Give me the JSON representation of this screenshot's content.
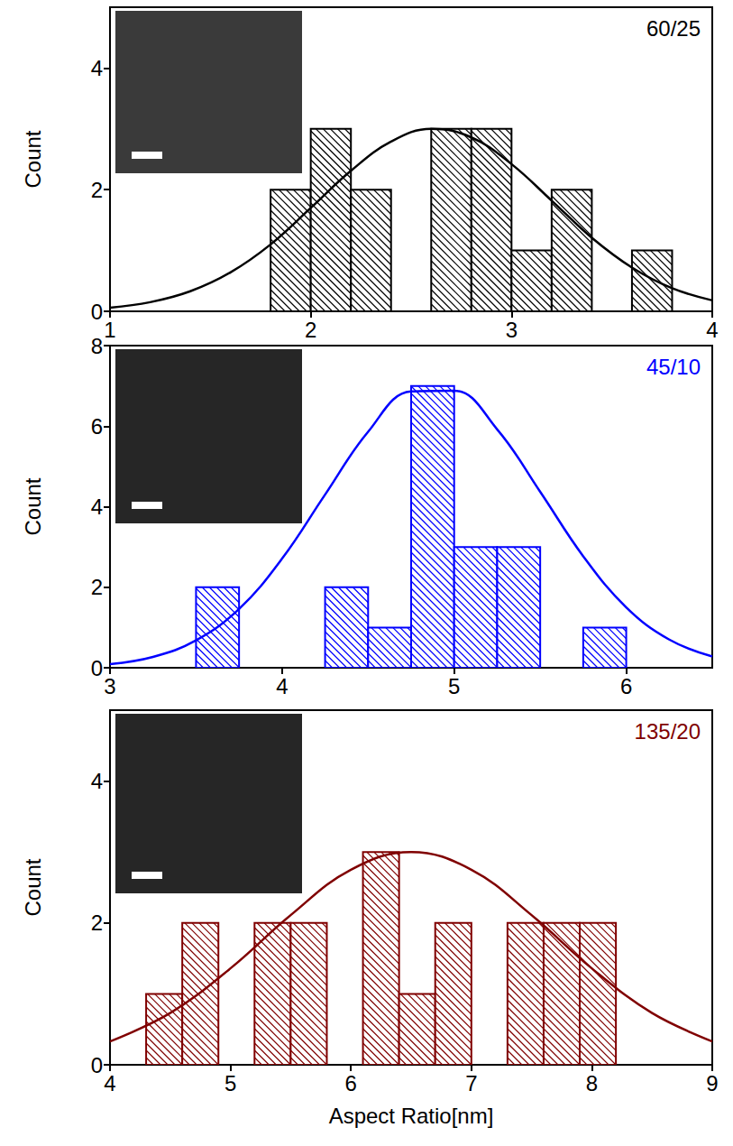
{
  "chart_data": [
    {
      "type": "histogram",
      "title": "60/25",
      "color": "#000000",
      "y_label": "Count",
      "bins": [
        1.8,
        2.0,
        2.2,
        2.4,
        2.6,
        2.8,
        3.0,
        3.2,
        3.4,
        3.6,
        3.8
      ],
      "counts": [
        2,
        3,
        2,
        0,
        3,
        3,
        1,
        2,
        0,
        1
      ],
      "fit": {
        "type": "line",
        "x": [
          1.0,
          1.2,
          1.4,
          1.6,
          1.8,
          2.0,
          2.2,
          2.4,
          2.6,
          2.8,
          3.0,
          3.2,
          3.4,
          3.6,
          3.8,
          4.0
        ],
        "values": [
          0.06,
          0.15,
          0.33,
          0.64,
          1.1,
          1.7,
          2.31,
          2.79,
          3.0,
          2.86,
          2.42,
          1.82,
          1.21,
          0.72,
          0.38,
          0.18
        ]
      },
      "xlim": [
        1,
        4
      ],
      "xticks": [
        1,
        2,
        3,
        4
      ],
      "ylim": [
        0,
        5
      ],
      "yticks": [
        0,
        2,
        4
      ],
      "grid": false
    },
    {
      "type": "histogram",
      "title": "45/10",
      "color": "#0000ff",
      "y_label": "Count",
      "bins": [
        3.5,
        3.75,
        4.0,
        4.25,
        4.5,
        4.75,
        5.0,
        5.25,
        5.5,
        5.75,
        6.0
      ],
      "counts": [
        2,
        0,
        0,
        2,
        1,
        7,
        3,
        3,
        0,
        1
      ],
      "fit": {
        "type": "line",
        "x": [
          3.0,
          3.25,
          3.5,
          3.75,
          4.0,
          4.25,
          4.5,
          4.75,
          5.0,
          5.25,
          5.5,
          5.75,
          6.0,
          6.25,
          6.5
        ],
        "values": [
          0.09,
          0.27,
          0.68,
          1.46,
          2.71,
          4.3,
          5.86,
          6.86,
          6.88,
          5.92,
          4.37,
          2.77,
          1.5,
          0.7,
          0.28
        ]
      },
      "xlim": [
        3,
        6.5
      ],
      "xticks": [
        3,
        4,
        5,
        6
      ],
      "ylim": [
        0,
        8
      ],
      "yticks": [
        0,
        2,
        4,
        6,
        8
      ],
      "grid": false
    },
    {
      "type": "histogram",
      "title": "135/20",
      "color": "#800000",
      "y_label": "Count",
      "x_label": "Aspect Ratio[nm]",
      "bins": [
        4.3,
        4.6,
        4.9,
        5.2,
        5.5,
        5.8,
        6.1,
        6.4,
        6.7,
        7.0,
        7.3,
        7.6,
        7.9,
        8.2
      ],
      "counts": [
        1,
        2,
        0,
        2,
        2,
        0,
        3,
        1,
        2,
        0,
        2,
        2,
        2
      ],
      "fit": {
        "type": "line",
        "x": [
          4.0,
          4.5,
          5.0,
          5.5,
          6.0,
          6.5,
          7.0,
          7.5,
          8.0,
          8.5,
          9.0
        ],
        "values": [
          0.33,
          0.73,
          1.36,
          2.11,
          2.75,
          3.0,
          2.75,
          2.11,
          1.36,
          0.73,
          0.33
        ]
      },
      "xlim": [
        4,
        9
      ],
      "xticks": [
        4,
        5,
        6,
        7,
        8,
        9
      ],
      "ylim": [
        0,
        5
      ],
      "yticks": [
        0,
        2,
        4
      ],
      "grid": false
    }
  ]
}
